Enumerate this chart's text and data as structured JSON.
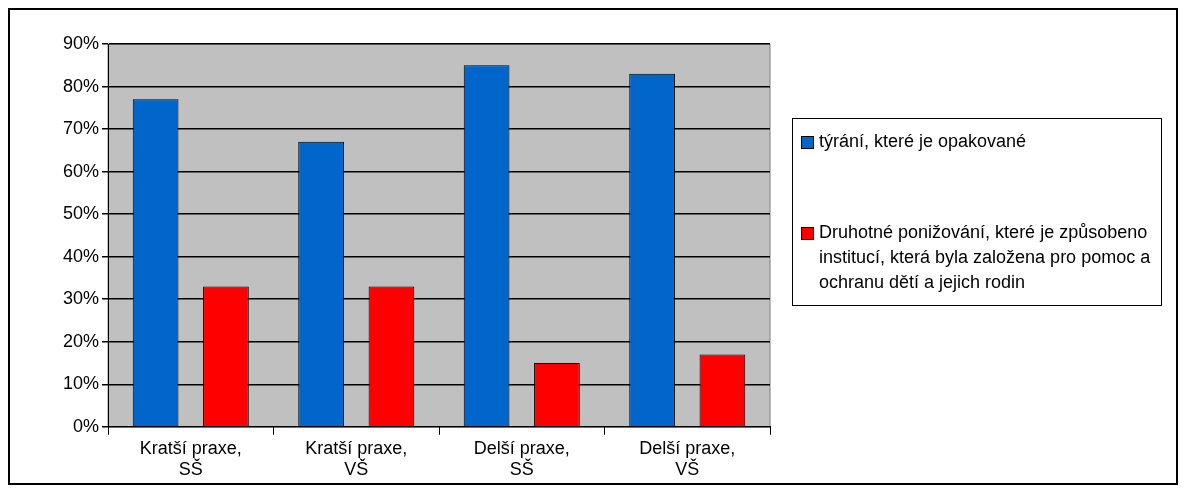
{
  "chart_data": {
    "type": "bar",
    "categories": [
      "Kratší praxe, SŠ",
      "Kratší praxe, VŠ",
      "Delší praxe, SŠ",
      "Delší praxe, VŠ"
    ],
    "series": [
      {
        "name": "týrání, které je opakované",
        "color": "#0066cc",
        "values": [
          77,
          67,
          85,
          83
        ]
      },
      {
        "name": "Druhotné ponižování, které je způsobeno institucí, která byla založena pro pomoc a ochranu dětí a jejich rodin",
        "color": "#ff0000",
        "values": [
          33,
          33,
          15,
          17
        ]
      }
    ],
    "ylim": [
      0,
      90
    ],
    "yticks": [
      {
        "value": 0,
        "label": "0%"
      },
      {
        "value": 10,
        "label": "10%"
      },
      {
        "value": 20,
        "label": "20%"
      },
      {
        "value": 30,
        "label": "30%"
      },
      {
        "value": 40,
        "label": "40%"
      },
      {
        "value": 50,
        "label": "50%"
      },
      {
        "value": 60,
        "label": "60%"
      },
      {
        "value": 70,
        "label": "70%"
      },
      {
        "value": 80,
        "label": "80%"
      },
      {
        "value": 90,
        "label": "90%"
      }
    ],
    "grid": true,
    "legend": "right"
  }
}
